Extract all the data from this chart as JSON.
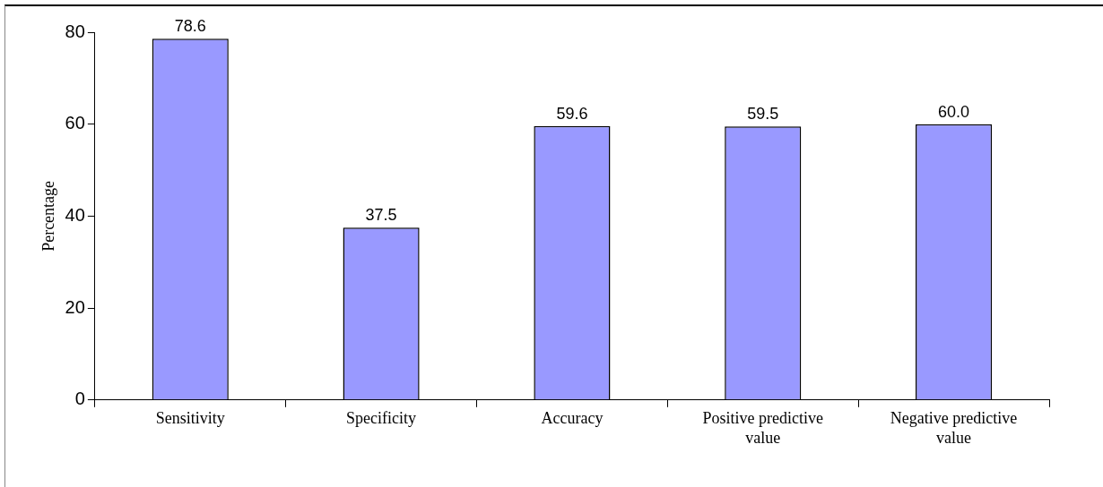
{
  "chart_data": {
    "type": "bar",
    "categories": [
      "Sensitivity",
      "Specificity",
      "Accuracy",
      "Positive predictive value",
      "Negative predictive value"
    ],
    "values": [
      78.6,
      37.5,
      59.6,
      59.5,
      60.0
    ],
    "value_labels": [
      "78.6",
      "37.5",
      "59.6",
      "59.5",
      "60.0"
    ],
    "color": "#9999ff",
    "ylabel": "Percentage",
    "ylim": [
      0,
      80
    ],
    "yticks": [
      0,
      20,
      40,
      60,
      80
    ],
    "legend": false
  }
}
